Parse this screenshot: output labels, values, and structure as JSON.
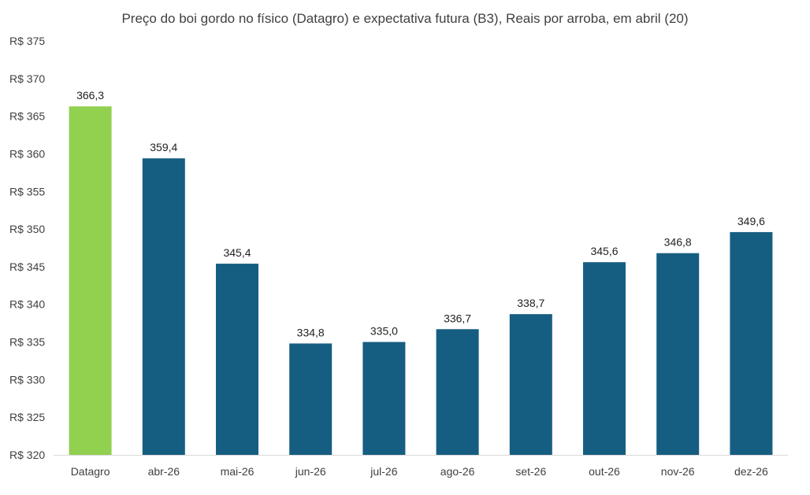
{
  "chart_data": {
    "type": "bar",
    "title": "Preço do boi gordo no físico (Datagro)  e expectativa futura (B3), Reais por arroba, em abril (20)",
    "xlabel": "",
    "ylabel": "",
    "ylim": [
      320,
      375
    ],
    "ytick_step": 5,
    "ytick_prefix": "R$ ",
    "categories": [
      "Datagro",
      "abr-26",
      "mai-26",
      "jun-26",
      "jul-26",
      "ago-26",
      "set-26",
      "out-26",
      "nov-26",
      "dez-26"
    ],
    "values": [
      366.3,
      359.4,
      345.4,
      334.8,
      335.0,
      336.7,
      338.7,
      345.6,
      346.8,
      349.6
    ],
    "value_labels": [
      "366,3",
      "359,4",
      "345,4",
      "334,8",
      "335,0",
      "336,7",
      "338,7",
      "345,6",
      "346,8",
      "349,6"
    ],
    "colors": [
      "#92d050",
      "#165e81",
      "#165e81",
      "#165e81",
      "#165e81",
      "#165e81",
      "#165e81",
      "#165e81",
      "#165e81",
      "#165e81"
    ],
    "grid": false,
    "legend": "none"
  },
  "colors": {
    "axis": "#d9d9d9",
    "text": "#404040"
  }
}
